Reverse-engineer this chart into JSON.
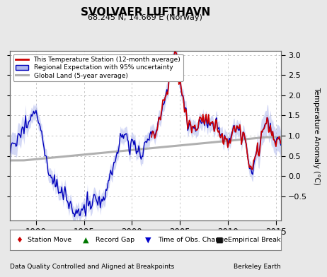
{
  "title": "SVOLVAER LUFTHAVN",
  "subtitle": "68.245 N, 14.669 E (Norway)",
  "ylabel": "Temperature Anomaly (°C)",
  "xlabel_left": "Data Quality Controlled and Aligned at Breakpoints",
  "xlabel_right": "Berkeley Earth",
  "year_start": 1987.0,
  "year_end": 2015.5,
  "ylim": [
    -1.1,
    3.1
  ],
  "yticks": [
    -0.5,
    0,
    0.5,
    1,
    1.5,
    2,
    2.5,
    3
  ],
  "xticks": [
    1990,
    1995,
    2000,
    2005,
    2010,
    2015
  ],
  "bg_color": "#e8e8e8",
  "plot_bg_color": "#ffffff",
  "red_color": "#cc0000",
  "blue_dark": "#0000bb",
  "blue_light": "#b0b8ee",
  "gray_color": "#b0b0b0",
  "seed": 17
}
